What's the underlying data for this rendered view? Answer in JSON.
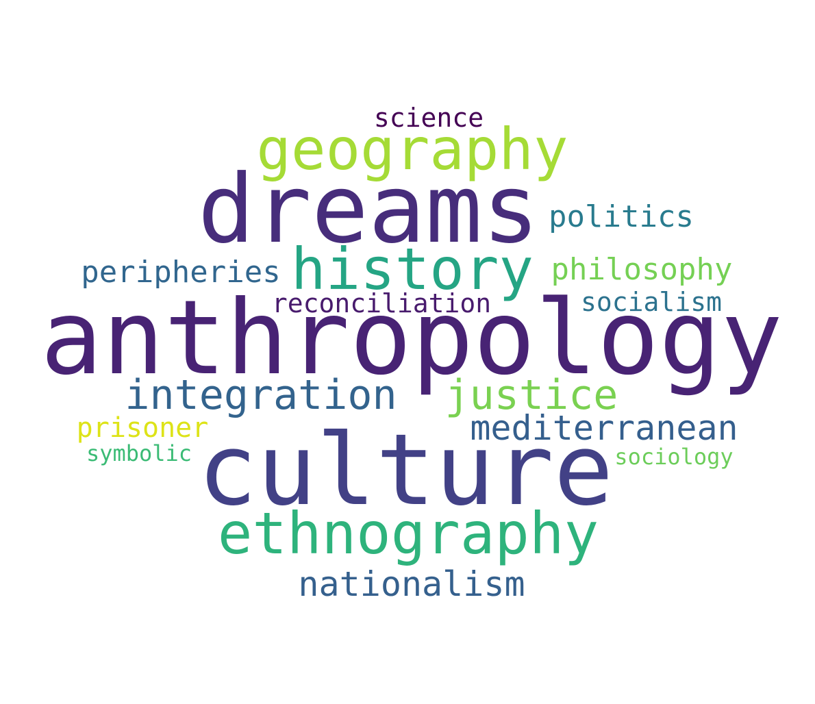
{
  "word_cloud": {
    "words": [
      {
        "id": "anthropology",
        "text": "anthropology",
        "color": "#482374"
      },
      {
        "id": "culture",
        "text": "culture",
        "color": "#424186"
      },
      {
        "id": "dreams",
        "text": "dreams",
        "color": "#472d7b"
      },
      {
        "id": "history",
        "text": "history",
        "color": "#25a584"
      },
      {
        "id": "geography",
        "text": "geography",
        "color": "#a5db36"
      },
      {
        "id": "ethnography",
        "text": "ethnography",
        "color": "#2eb37c"
      },
      {
        "id": "integration",
        "text": "integration",
        "color": "#33638d"
      },
      {
        "id": "justice",
        "text": "justice",
        "color": "#7ad151"
      },
      {
        "id": "mediterranean",
        "text": "mediterranean",
        "color": "#355f8d"
      },
      {
        "id": "nationalism",
        "text": "nationalism",
        "color": "#35608d"
      },
      {
        "id": "politics",
        "text": "politics",
        "color": "#297b8e"
      },
      {
        "id": "peripheries",
        "text": "peripheries",
        "color": "#31668e"
      },
      {
        "id": "philosophy",
        "text": "philosophy",
        "color": "#75d054"
      },
      {
        "id": "reconciliation",
        "text": "reconciliation",
        "color": "#481b6d"
      },
      {
        "id": "socialism",
        "text": "socialism",
        "color": "#2c728e"
      },
      {
        "id": "prisoner",
        "text": "prisoner",
        "color": "#dde318"
      },
      {
        "id": "science",
        "text": "science",
        "color": "#440154"
      },
      {
        "id": "symbolic",
        "text": "symbolic",
        "color": "#3bbb75"
      },
      {
        "id": "sociology",
        "text": "sociology",
        "color": "#6ccd5a"
      }
    ]
  }
}
